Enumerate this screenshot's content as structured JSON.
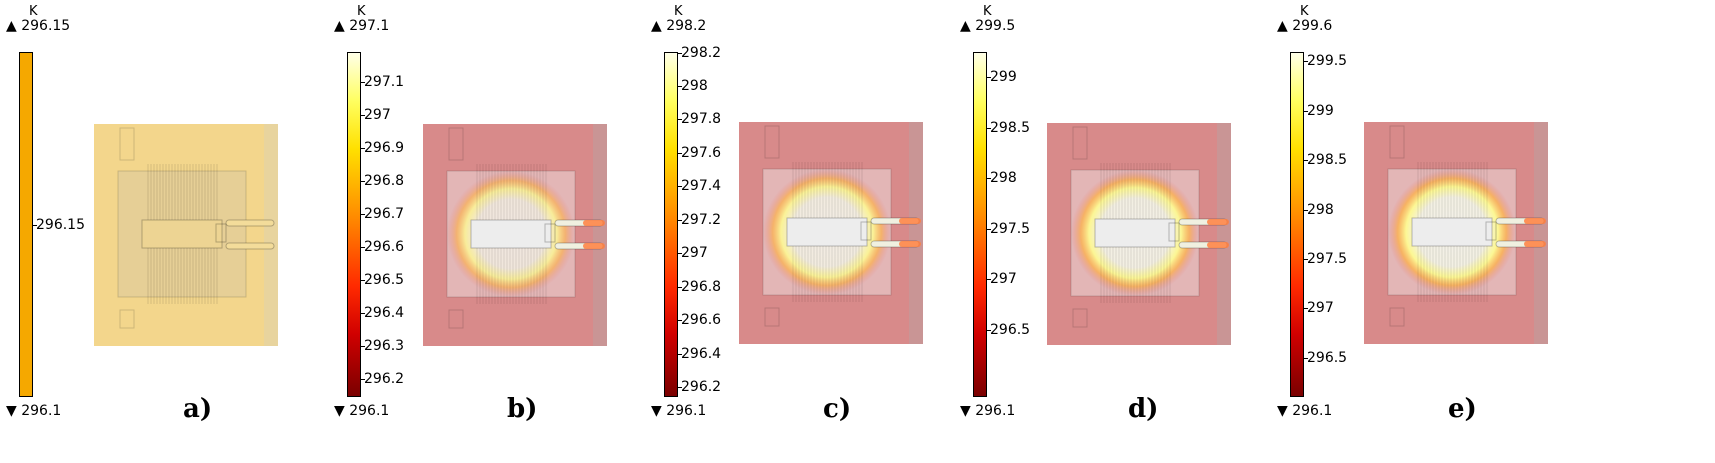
{
  "unit": "K",
  "colors": {
    "cold_uniform": "#f5a800",
    "hot_ramp": [
      "#7a0000",
      "#d00000",
      "#ff2a00",
      "#ff8a00",
      "#ffe000",
      "#ffff60",
      "#ffffe8"
    ]
  },
  "panels": [
    {
      "caption": "a)",
      "max": "296.15",
      "min": "296.1",
      "uniform": true,
      "ticks": [
        {
          "label": "296.15",
          "frac": 0.5
        }
      ],
      "hotspot": 0.0
    },
    {
      "caption": "b)",
      "max": "297.1",
      "min": "296.1",
      "uniform": false,
      "ticks": [
        {
          "label": "297.1",
          "frac": 0.914
        },
        {
          "label": "297",
          "frac": 0.818
        },
        {
          "label": "296.9",
          "frac": 0.722
        },
        {
          "label": "296.8",
          "frac": 0.626
        },
        {
          "label": "296.7",
          "frac": 0.531
        },
        {
          "label": "296.6",
          "frac": 0.435
        },
        {
          "label": "296.5",
          "frac": 0.339
        },
        {
          "label": "296.4",
          "frac": 0.243
        },
        {
          "label": "296.3",
          "frac": 0.147
        },
        {
          "label": "296.2",
          "frac": 0.052
        }
      ],
      "hotspot": 0.78
    },
    {
      "caption": "c)",
      "max": "298.2",
      "min": "296.1",
      "uniform": false,
      "ticks": [
        {
          "label": "298.2",
          "frac": 0.998
        },
        {
          "label": "298",
          "frac": 0.902
        },
        {
          "label": "297.8",
          "frac": 0.805
        },
        {
          "label": "297.6",
          "frac": 0.708
        },
        {
          "label": "297.4",
          "frac": 0.611
        },
        {
          "label": "297.2",
          "frac": 0.514
        },
        {
          "label": "297",
          "frac": 0.417
        },
        {
          "label": "296.8",
          "frac": 0.32
        },
        {
          "label": "296.6",
          "frac": 0.223
        },
        {
          "label": "296.4",
          "frac": 0.126
        },
        {
          "label": "296.2",
          "frac": 0.029
        }
      ],
      "hotspot": 0.86
    },
    {
      "caption": "d)",
      "max": "299.5",
      "min": "296.1",
      "uniform": false,
      "ticks": [
        {
          "label": "299",
          "frac": 0.927
        },
        {
          "label": "298.5",
          "frac": 0.781
        },
        {
          "label": "298",
          "frac": 0.634
        },
        {
          "label": "297.5",
          "frac": 0.488
        },
        {
          "label": "297",
          "frac": 0.341
        },
        {
          "label": "296.5",
          "frac": 0.195
        }
      ],
      "hotspot": 0.92
    },
    {
      "caption": "e)",
      "max": "299.6",
      "min": "296.1",
      "uniform": false,
      "ticks": [
        {
          "label": "299.5",
          "frac": 0.973
        },
        {
          "label": "299",
          "frac": 0.829
        },
        {
          "label": "298.5",
          "frac": 0.686
        },
        {
          "label": "298",
          "frac": 0.543
        },
        {
          "label": "297.5",
          "frac": 0.4
        },
        {
          "label": "297",
          "frac": 0.257
        },
        {
          "label": "296.5",
          "frac": 0.114
        }
      ],
      "hotspot": 0.94
    }
  ]
}
